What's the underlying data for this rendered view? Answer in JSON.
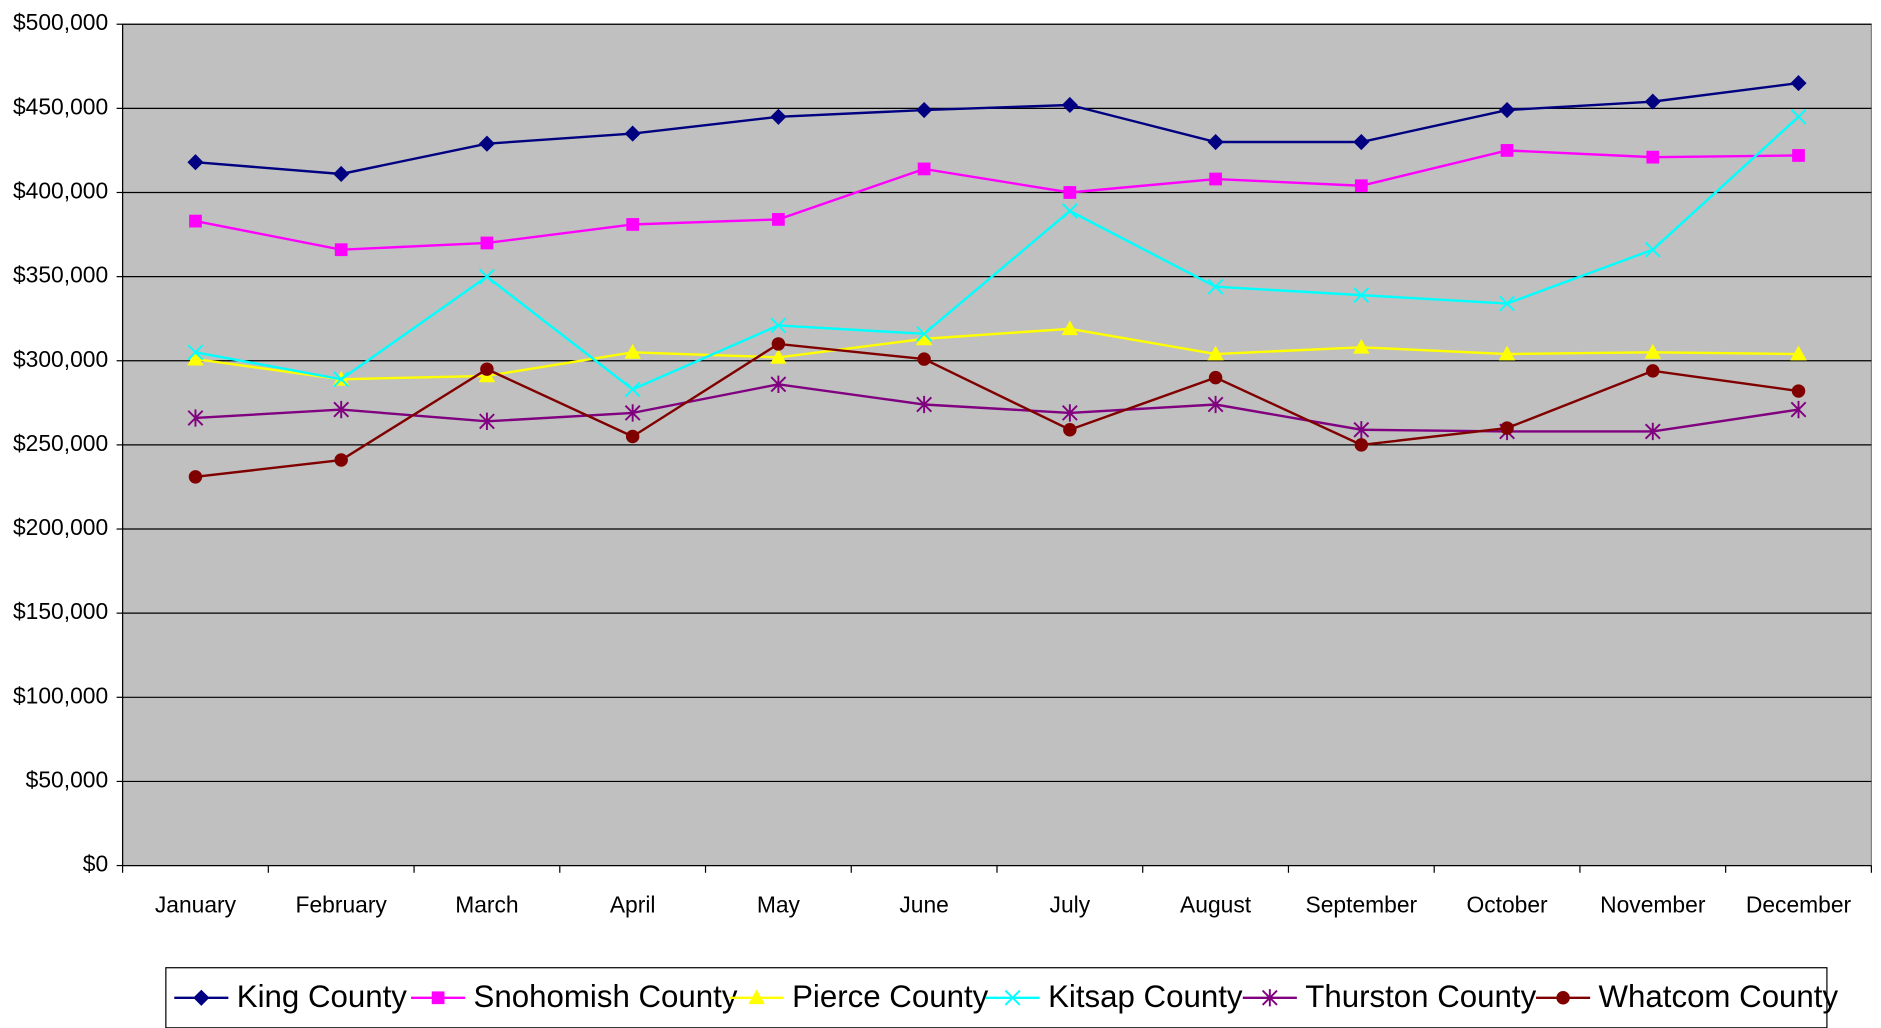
{
  "chart_data": {
    "type": "line",
    "categories": [
      "January",
      "February",
      "March",
      "April",
      "May",
      "June",
      "July",
      "August",
      "September",
      "October",
      "November",
      "December"
    ],
    "series": [
      {
        "name": "King County",
        "color": "#000080",
        "marker": "diamond",
        "values": [
          418000,
          411000,
          429000,
          435000,
          445000,
          449000,
          452000,
          430000,
          430000,
          449000,
          454000,
          465000
        ]
      },
      {
        "name": "Snohomish County",
        "color": "#ff00ff",
        "marker": "square",
        "values": [
          383000,
          366000,
          370000,
          381000,
          384000,
          414000,
          400000,
          408000,
          404000,
          425000,
          421000,
          422000
        ]
      },
      {
        "name": "Pierce County",
        "color": "#ffff00",
        "marker": "triangle",
        "values": [
          301000,
          289000,
          291000,
          305000,
          302000,
          313000,
          319000,
          304000,
          308000,
          304000,
          305000,
          304000
        ]
      },
      {
        "name": "Kitsap County",
        "color": "#00ffff",
        "marker": "x",
        "values": [
          305000,
          289000,
          350000,
          283000,
          321000,
          316000,
          389000,
          344000,
          339000,
          334000,
          366000,
          445000
        ]
      },
      {
        "name": "Thurston County",
        "color": "#800080",
        "marker": "asterisk",
        "values": [
          266000,
          271000,
          264000,
          269000,
          286000,
          274000,
          269000,
          274000,
          259000,
          258000,
          258000,
          271000
        ]
      },
      {
        "name": "Whatcom County",
        "color": "#800000",
        "marker": "circle",
        "values": [
          231000,
          241000,
          295000,
          255000,
          310000,
          301000,
          259000,
          290000,
          250000,
          260000,
          294000,
          282000
        ]
      }
    ],
    "ylim": [
      0,
      500000
    ],
    "yticks": [
      {
        "value": 0,
        "label": "$0"
      },
      {
        "value": 50000,
        "label": "$50,000"
      },
      {
        "value": 100000,
        "label": "$100,000"
      },
      {
        "value": 150000,
        "label": "$150,000"
      },
      {
        "value": 200000,
        "label": "$200,000"
      },
      {
        "value": 250000,
        "label": "$250,000"
      },
      {
        "value": 300000,
        "label": "$300,000"
      },
      {
        "value": 350000,
        "label": "$350,000"
      },
      {
        "value": 400000,
        "label": "$400,000"
      },
      {
        "value": 450000,
        "label": "$450,000"
      },
      {
        "value": 500000,
        "label": "$500,000"
      }
    ],
    "grid": true,
    "plot_background": "#c0c0c0",
    "legend": "bottom"
  }
}
